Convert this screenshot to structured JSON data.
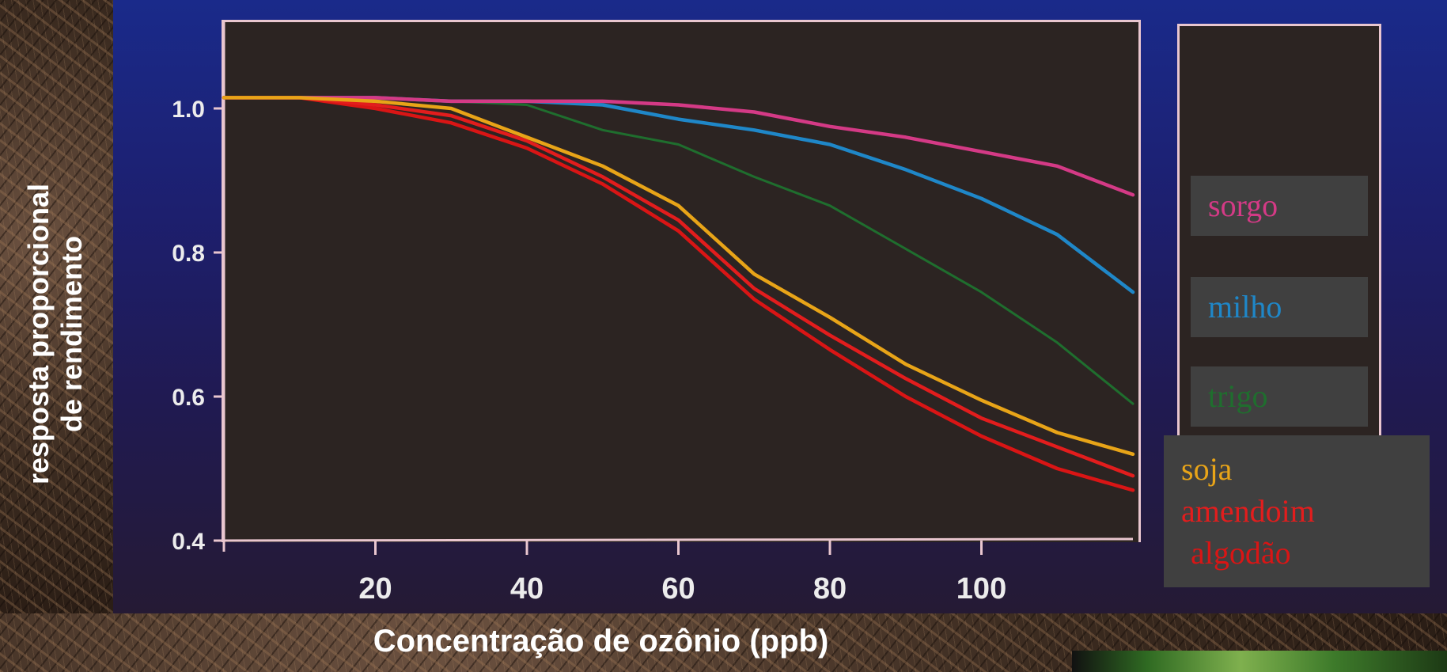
{
  "chart_data": {
    "type": "line",
    "xlabel": "Concentração de ozônio (ppb)",
    "ylabel": "resposta proporcional de rendimento",
    "ylabel_lines": [
      "resposta proporcional",
      "de rendimento"
    ],
    "xlim": [
      0,
      120
    ],
    "ylim": [
      0.4,
      1.1
    ],
    "xticks": [
      20,
      40,
      60,
      80,
      100
    ],
    "yticks": [
      0.4,
      0.6,
      0.8,
      1.0
    ],
    "ytick_labels": [
      "0.4",
      "0.6",
      "0.8",
      "1.0"
    ],
    "grid": false,
    "legend_position": "right",
    "x": [
      0,
      10,
      20,
      30,
      40,
      50,
      60,
      70,
      80,
      90,
      100,
      110,
      120
    ],
    "series": [
      {
        "name": "sorgo",
        "color": "#d43a86",
        "values": [
          1.015,
          1.015,
          1.015,
          1.01,
          1.01,
          1.01,
          1.005,
          0.995,
          0.975,
          0.96,
          0.94,
          0.92,
          0.88
        ]
      },
      {
        "name": "milho",
        "color": "#1f87c8",
        "values": [
          1.015,
          1.015,
          1.015,
          1.01,
          1.01,
          1.005,
          0.985,
          0.97,
          0.95,
          0.915,
          0.875,
          0.825,
          0.745
        ]
      },
      {
        "name": "trigo",
        "color": "#1f6e2e",
        "values": [
          1.015,
          1.015,
          1.015,
          1.01,
          1.005,
          0.97,
          0.95,
          0.905,
          0.865,
          0.805,
          0.745,
          0.675,
          0.59
        ]
      },
      {
        "name": "soja",
        "color": "#e8a418",
        "values": [
          1.015,
          1.015,
          1.01,
          1.0,
          0.96,
          0.92,
          0.865,
          0.77,
          0.71,
          0.645,
          0.595,
          0.55,
          0.52
        ]
      },
      {
        "name": "amendoim",
        "color": "#e21d1d",
        "values": [
          1.015,
          1.015,
          1.005,
          0.99,
          0.955,
          0.905,
          0.845,
          0.75,
          0.685,
          0.625,
          0.57,
          0.53,
          0.49
        ]
      },
      {
        "name": "algodão",
        "color": "#d91515",
        "values": [
          1.015,
          1.015,
          1.0,
          0.98,
          0.945,
          0.895,
          0.83,
          0.735,
          0.665,
          0.6,
          0.545,
          0.5,
          0.47
        ]
      }
    ],
    "legend": [
      {
        "label": "sorgo",
        "color": "#d43a86"
      },
      {
        "label": "milho",
        "color": "#1f87c8"
      },
      {
        "label": "trigo",
        "color": "#1f6e2e"
      },
      {
        "label": "soja",
        "color": "#e8a418"
      },
      {
        "label": "amendoim",
        "color": "#e21d1d"
      },
      {
        "label": "algodão",
        "color": "#d91515"
      }
    ]
  }
}
